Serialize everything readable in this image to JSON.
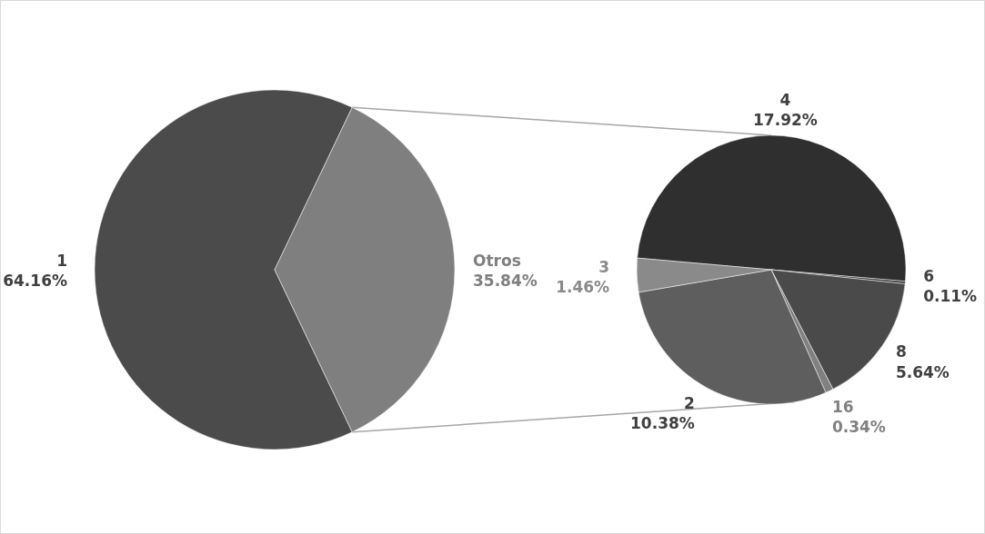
{
  "chart_data": [
    {
      "type": "pie",
      "categories": [
        "1",
        "Otros"
      ],
      "values": [
        64.16,
        35.84
      ],
      "colors": [
        "#4b4b4b",
        "#7f7f7f"
      ],
      "value_labels": [
        "64.16%",
        "35.84%"
      ]
    },
    {
      "type": "pie",
      "categories": [
        "4",
        "6",
        "8",
        "16",
        "2",
        "3"
      ],
      "values": [
        17.92,
        0.11,
        5.64,
        0.34,
        10.38,
        1.46
      ],
      "colors": [
        "#2f2f2f",
        "#3c3c3c",
        "#4a4a4a",
        "#808080",
        "#5e5e5e",
        "#8a8a8a"
      ],
      "value_labels": [
        "17.92%",
        "0.11%",
        "5.64%",
        "0.34%",
        "10.38%",
        "1.46%"
      ]
    }
  ]
}
